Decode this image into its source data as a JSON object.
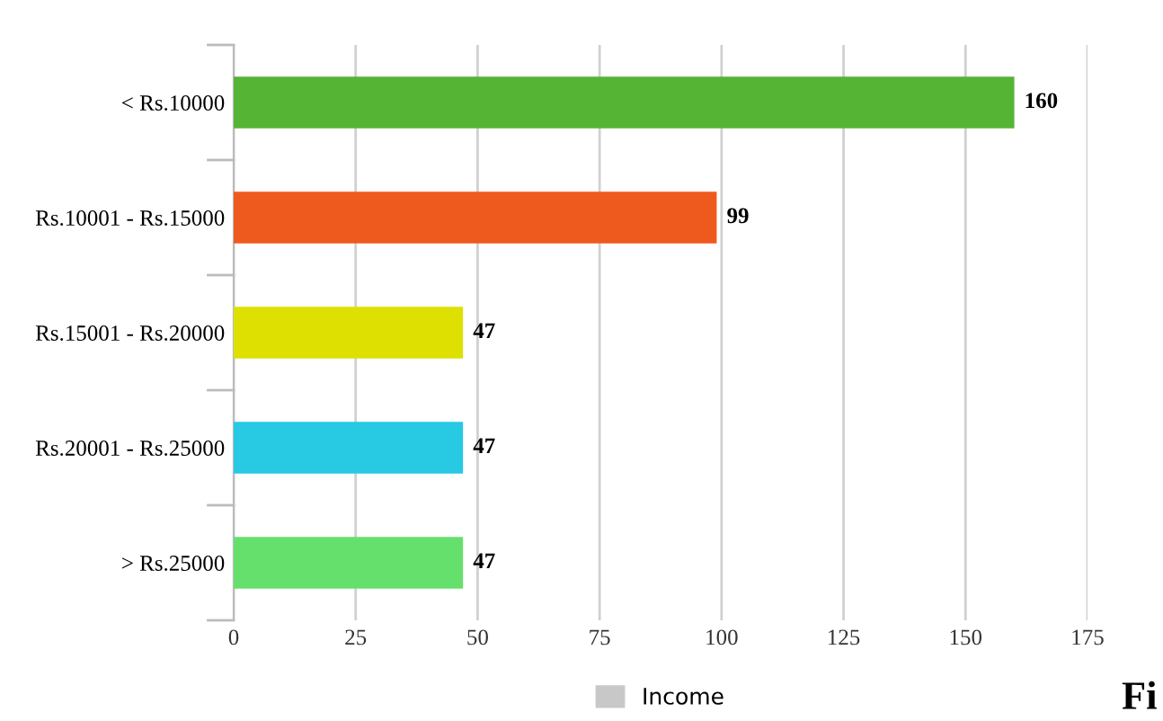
{
  "chart_data": {
    "type": "bar",
    "orientation": "horizontal",
    "categories": [
      "< Rs.10000",
      "Rs.10001 - Rs.15000",
      "Rs.15001 - Rs.20000",
      "Rs.20001 - Rs.25000",
      "> Rs.25000"
    ],
    "series": [
      {
        "name": "Income",
        "color": "#c8c8c8",
        "colors": [
          "#56b435",
          "#ee5a1e",
          "#dde000",
          "#27c9e3",
          "#66e06d"
        ],
        "values": [
          160,
          99,
          47,
          47,
          47
        ]
      }
    ],
    "xlim": [
      0,
      175
    ],
    "xticks": [
      0,
      25,
      50,
      75,
      100,
      125,
      150,
      175
    ],
    "grid": "x",
    "legend": "bottom",
    "data_labels": true,
    "annotations": [
      "Fi"
    ]
  }
}
